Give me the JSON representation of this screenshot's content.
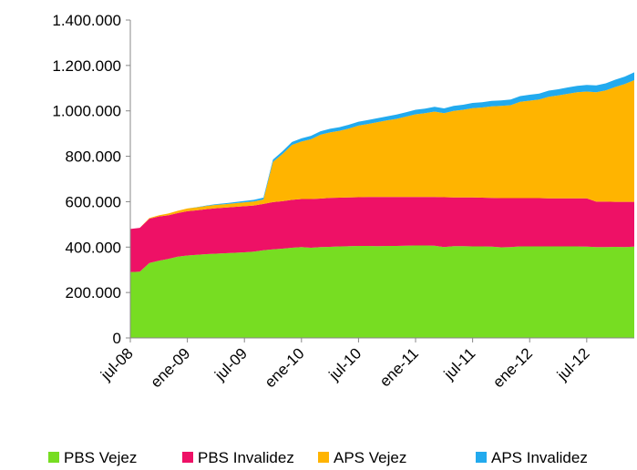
{
  "chart_data": {
    "type": "stacked-area",
    "categories": [
      "jul-08",
      null,
      null,
      null,
      null,
      null,
      "ene-09",
      null,
      null,
      null,
      null,
      null,
      "jul-09",
      null,
      null,
      null,
      null,
      null,
      "ene-10",
      null,
      null,
      null,
      null,
      null,
      "jul-10",
      null,
      null,
      null,
      null,
      null,
      "ene-11",
      null,
      null,
      null,
      null,
      null,
      "jul-11",
      null,
      null,
      null,
      null,
      null,
      "ene-12",
      null,
      null,
      null,
      null,
      null,
      "jul-12",
      null,
      null,
      null,
      null,
      null
    ],
    "series": [
      {
        "name": "PBS Vejez",
        "color": "#77dd22",
        "values": [
          290000,
          292000,
          330000,
          340000,
          348000,
          358000,
          363000,
          366000,
          369000,
          371000,
          373000,
          375000,
          377000,
          380000,
          386000,
          390000,
          393000,
          397000,
          400000,
          397000,
          400000,
          401000,
          403000,
          404000,
          405000,
          405000,
          404000,
          405000,
          405000,
          406000,
          407000,
          407000,
          406000,
          400000,
          404000,
          404000,
          403000,
          403000,
          402000,
          399000,
          400000,
          403000,
          403000,
          403000,
          403000,
          403000,
          403000,
          403000,
          402000,
          400000,
          400000,
          401000,
          400000,
          402000
        ]
      },
      {
        "name": "PBS Invalidez",
        "color": "#ee1166",
        "values": [
          190000,
          193000,
          195000,
          195000,
          192000,
          192000,
          195000,
          196000,
          198000,
          200000,
          201000,
          202000,
          203000,
          203000,
          204000,
          208000,
          209000,
          211000,
          212000,
          215000,
          214000,
          216000,
          215000,
          215000,
          215000,
          216000,
          217000,
          216000,
          216000,
          215000,
          214000,
          214000,
          215000,
          220000,
          215000,
          215000,
          216000,
          215000,
          215000,
          217000,
          216000,
          213000,
          213000,
          213000,
          212000,
          212000,
          212000,
          212000,
          213000,
          200000,
          200000,
          198000,
          199000,
          197000
        ]
      },
      {
        "name": "APS Vejez",
        "color": "#ffb400",
        "values": [
          0,
          0,
          3000,
          5000,
          8000,
          10000,
          12000,
          13000,
          14000,
          15000,
          15000,
          16000,
          17000,
          18000,
          20000,
          177000,
          208000,
          242000,
          253000,
          263000,
          281000,
          288000,
          294000,
          303000,
          315000,
          321000,
          329000,
          337000,
          344000,
          354000,
          364000,
          369000,
          376000,
          370000,
          381000,
          386000,
          393000,
          397000,
          403000,
          406000,
          409000,
          424000,
          429000,
          434000,
          447000,
          453000,
          460000,
          467000,
          470000,
          482000,
          490000,
          506000,
          519000,
          536000
        ]
      },
      {
        "name": "APS Invalidez",
        "color": "#22aaee",
        "values": [
          0,
          0,
          0,
          0,
          0,
          0,
          0,
          1000,
          2000,
          3000,
          4000,
          5000,
          6000,
          7000,
          8000,
          10000,
          12000,
          13000,
          14000,
          15000,
          15000,
          16000,
          16000,
          17000,
          17000,
          18000,
          18000,
          18000,
          19000,
          19000,
          20000,
          20000,
          21000,
          21000,
          22000,
          22000,
          23000,
          23000,
          24000,
          24000,
          25000,
          25000,
          26000,
          26000,
          27000,
          27000,
          28000,
          28000,
          29000,
          30000,
          31000,
          32000,
          33000,
          35000
        ]
      }
    ],
    "ylim": [
      0,
      1400000
    ],
    "yticks": [
      0,
      {
        "value": 200000,
        "label": "200.000"
      },
      {
        "value": 400000,
        "label": "400.000"
      },
      {
        "value": 600000,
        "label": "600.000"
      },
      {
        "value": 800000,
        "label": "800.000"
      },
      {
        "value": 1000000,
        "label": "1.000.000"
      },
      {
        "value": 1200000,
        "label": "1.200.000"
      },
      {
        "value": 1400000,
        "label": "1.400.000"
      }
    ],
    "grid": false,
    "legend": "bottom"
  }
}
